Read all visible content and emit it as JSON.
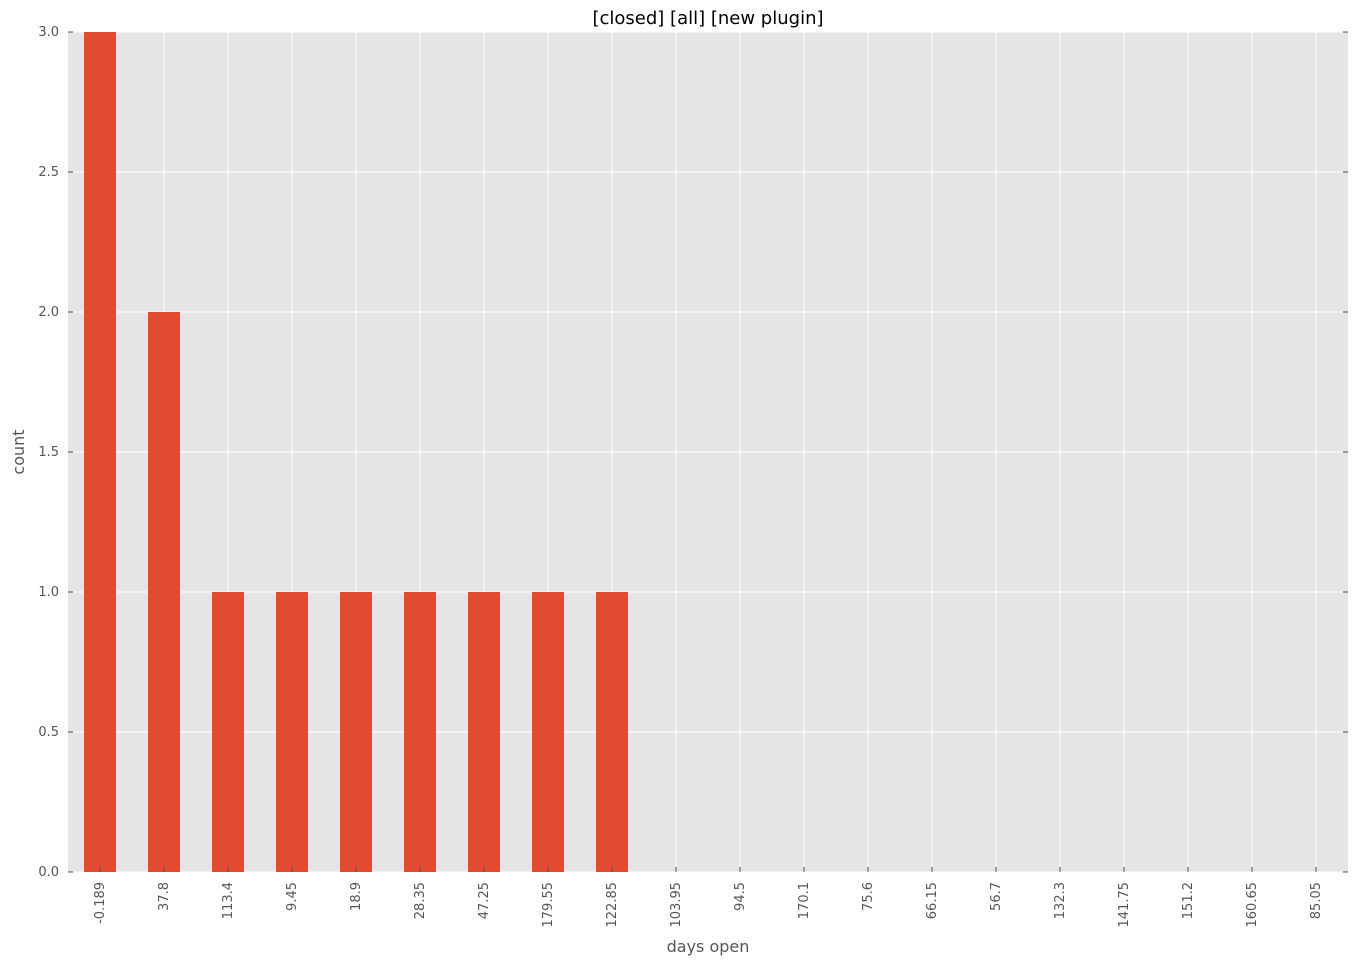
{
  "chart_data": {
    "type": "bar",
    "title": "[closed] [all] [new plugin]",
    "xlabel": "days open",
    "ylabel": "count",
    "categories": [
      "-0.189",
      "37.8",
      "113.4",
      "9.45",
      "18.9",
      "28.35",
      "47.25",
      "179.55",
      "122.85",
      "103.95",
      "94.5",
      "170.1",
      "75.6",
      "66.15",
      "56.7",
      "132.3",
      "141.75",
      "151.2",
      "160.65",
      "85.05"
    ],
    "values": [
      3,
      2,
      1,
      1,
      1,
      1,
      1,
      1,
      1,
      0,
      0,
      0,
      0,
      0,
      0,
      0,
      0,
      0,
      0,
      0
    ],
    "ylim": [
      0,
      3
    ],
    "yticks": [
      "0.0",
      "0.5",
      "1.0",
      "1.5",
      "2.0",
      "2.5",
      "3.0"
    ],
    "grid": true,
    "colors": {
      "bar": "#E24A33",
      "plot_background": "#E5E5E5",
      "grid": "#FFFFFF"
    }
  }
}
